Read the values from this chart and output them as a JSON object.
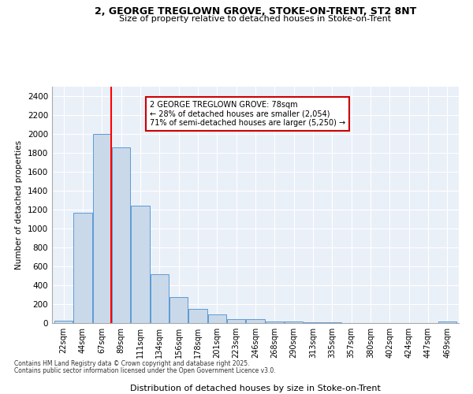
{
  "title": "2, GEORGE TREGLOWN GROVE, STOKE-ON-TRENT, ST2 8NT",
  "subtitle": "Size of property relative to detached houses in Stoke-on-Trent",
  "xlabel": "Distribution of detached houses by size in Stoke-on-Trent",
  "ylabel": "Number of detached properties",
  "bar_labels": [
    "22sqm",
    "44sqm",
    "67sqm",
    "89sqm",
    "111sqm",
    "134sqm",
    "156sqm",
    "178sqm",
    "201sqm",
    "223sqm",
    "246sqm",
    "268sqm",
    "290sqm",
    "313sqm",
    "335sqm",
    "357sqm",
    "380sqm",
    "402sqm",
    "424sqm",
    "447sqm",
    "469sqm"
  ],
  "bar_values": [
    25,
    1170,
    2000,
    1860,
    1245,
    520,
    275,
    150,
    90,
    45,
    40,
    20,
    15,
    8,
    5,
    3,
    2,
    2,
    1,
    1,
    20
  ],
  "bar_color": "#c9d9ea",
  "bar_edge_color": "#5b9bd5",
  "red_line_index": 2.475,
  "annotation_title": "2 GEORGE TREGLOWN GROVE: 78sqm",
  "annotation_line1": "← 28% of detached houses are smaller (2,054)",
  "annotation_line2": "71% of semi-detached houses are larger (5,250) →",
  "annotation_box_color": "#ffffff",
  "annotation_box_edge": "#cc0000",
  "footer1": "Contains HM Land Registry data © Crown copyright and database right 2025.",
  "footer2": "Contains public sector information licensed under the Open Government Licence v3.0.",
  "background_color": "#eaf0f8",
  "ylim": [
    0,
    2500
  ],
  "yticks": [
    0,
    200,
    400,
    600,
    800,
    1000,
    1200,
    1400,
    1600,
    1800,
    2000,
    2200,
    2400
  ]
}
